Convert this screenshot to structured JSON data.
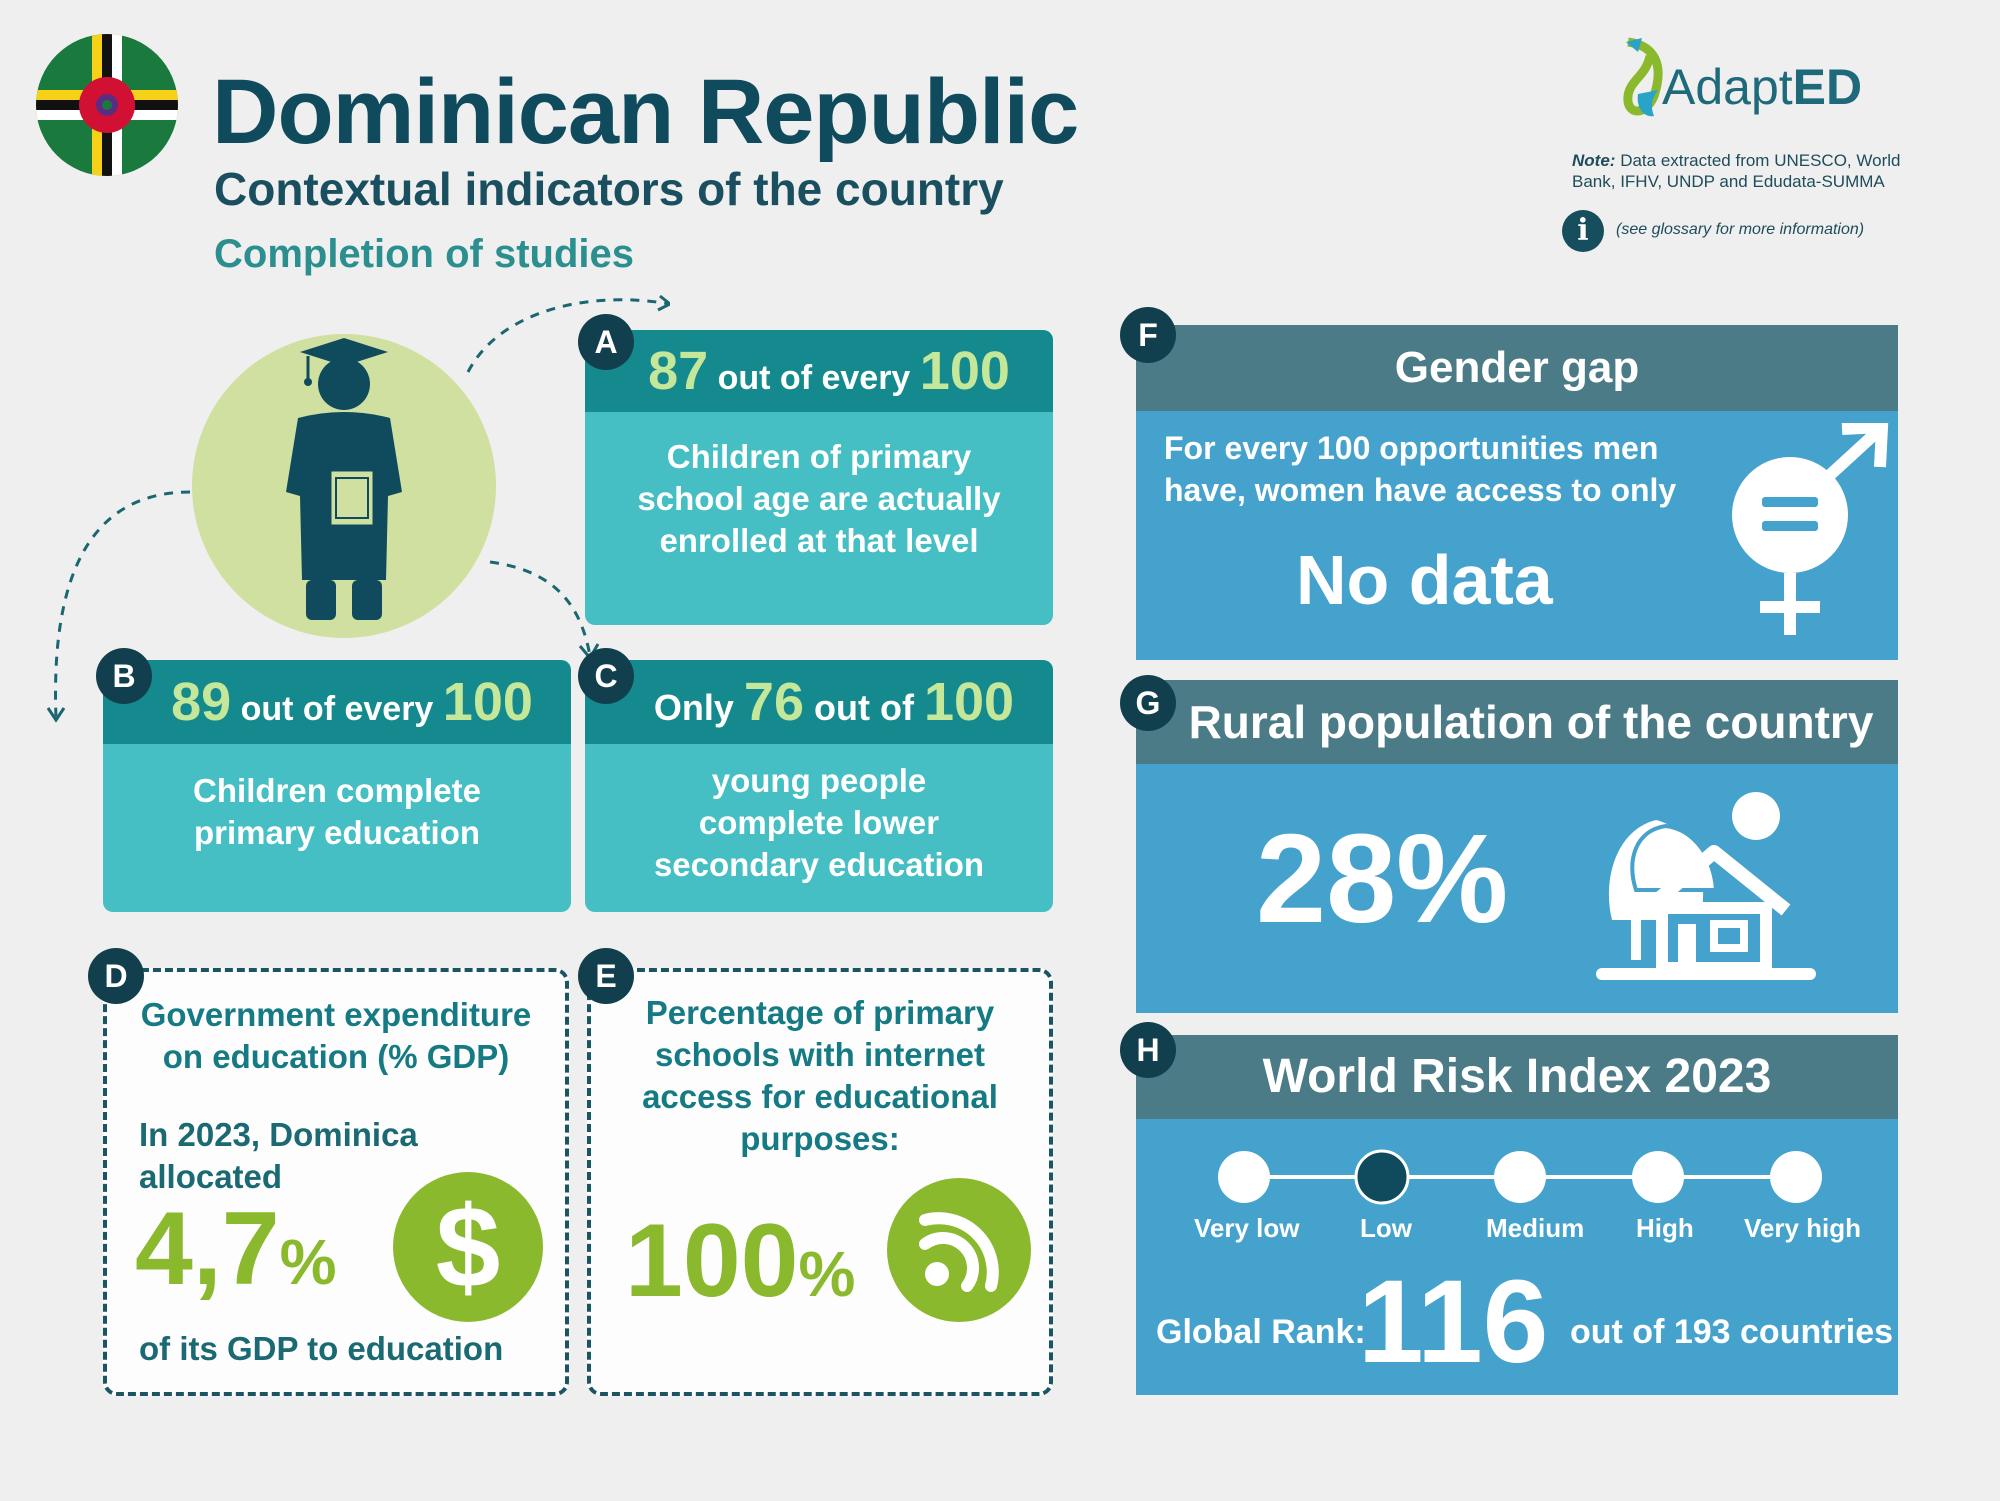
{
  "header": {
    "title": "Dominican Republic",
    "subtitle": "Contextual indicators of the country",
    "section": "Completion of studies"
  },
  "logo": {
    "text_light": "Adapt",
    "text_bold": "ED"
  },
  "note": {
    "label": "Note:",
    "text": "Data extracted from UNESCO, World Bank, IFHV, UNDP and Edudata-SUMMA",
    "glossary": "(see glossary for more information)",
    "info_symbol": "i"
  },
  "cards": {
    "a": {
      "badge": "A",
      "num1": "87",
      "mid": "out of every",
      "num2": "100",
      "body": [
        "Children of primary",
        "school age are actually",
        "enrolled at that level"
      ]
    },
    "b": {
      "badge": "B",
      "num1": "89",
      "mid": "out of every",
      "num2": "100",
      "body": [
        "Children complete",
        "primary education"
      ]
    },
    "c": {
      "badge": "C",
      "pre": "Only",
      "num1": "76",
      "mid": "out of",
      "num2": "100",
      "body": [
        "young people",
        "complete lower",
        "secondary education"
      ]
    }
  },
  "expenditure": {
    "badge": "D",
    "title": [
      "Government expenditure",
      "on education (% GDP)"
    ],
    "intro": [
      "In 2023, Dominica",
      "allocated"
    ],
    "value": "4,7",
    "unit": "%",
    "outro": "of its GDP to education",
    "icon": "dollar-icon"
  },
  "internet": {
    "badge": "E",
    "title": [
      "Percentage of primary",
      "schools with internet",
      "access for educational",
      "purposes:"
    ],
    "value": "100",
    "unit": "%",
    "icon": "wifi-icon"
  },
  "gender": {
    "badge": "F",
    "title": "Gender gap",
    "text": [
      "For every 100 opportunities men",
      "have, women have access to only"
    ],
    "value": "No data",
    "icon": "gender-equality-icon"
  },
  "rural": {
    "badge": "G",
    "title": "Rural population of the country",
    "value": "28%",
    "icon": "house-tree-icon"
  },
  "risk": {
    "badge": "H",
    "title": "World Risk Index 2023",
    "levels": [
      "Very low",
      "Low",
      "Medium",
      "High",
      "Very high"
    ],
    "selected_level": "Low",
    "rank_label": "Global Rank:",
    "rank": "116",
    "rank_suffix": "out of 193 countries"
  },
  "colors": {
    "dark_teal": "#0f4b5c",
    "teal_card": "#45bfc4",
    "teal_head": "#158a8e",
    "green": "#8ab92d",
    "blue_panel": "#45a2cc",
    "slate_head": "#4a7b86"
  }
}
